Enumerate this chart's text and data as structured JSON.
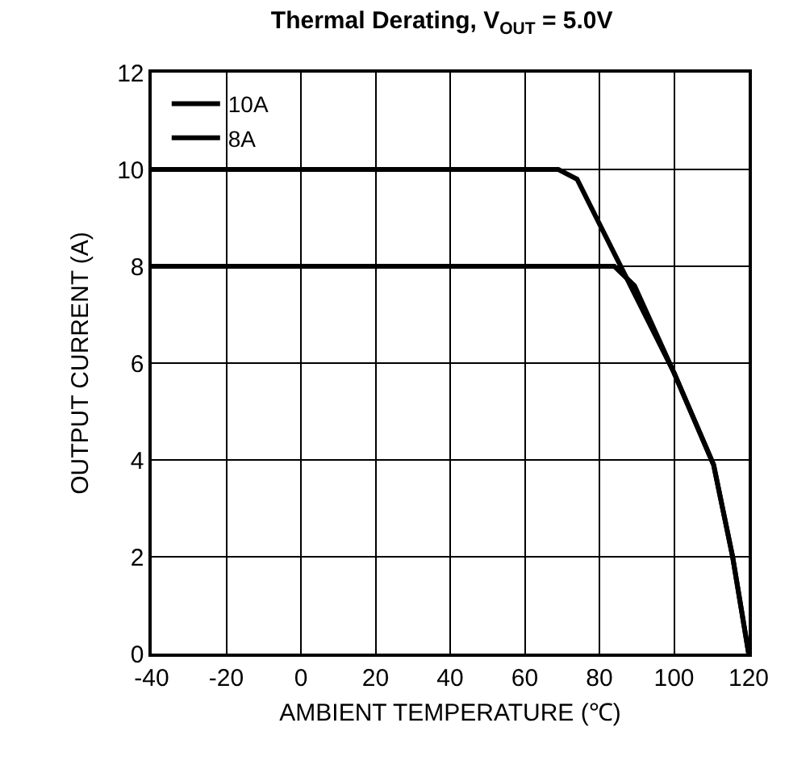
{
  "chart_data": {
    "type": "line",
    "title": "Thermal Derating, V$_{OUT}$ = 5.0V",
    "xlabel": "AMBIENT TEMPERATURE (℃)",
    "ylabel": "OUTPUT CURRENT (A)",
    "series": [
      {
        "name": "10A",
        "color": "#000000",
        "x": [
          -40,
          69,
          74,
          100,
          110.6,
          115.7,
          120
        ],
        "values": [
          10,
          10,
          9.8,
          5.8,
          3.9,
          2,
          0
        ]
      },
      {
        "name": "8A",
        "color": "#000000",
        "x": [
          -40,
          84,
          89.4,
          100,
          110.6,
          115.7,
          120
        ],
        "values": [
          8,
          8,
          7.6,
          5.8,
          3.9,
          2,
          0
        ]
      }
    ],
    "xlim": [
      -40,
      120
    ],
    "xticks": [
      -40,
      -20,
      0,
      20,
      40,
      60,
      80,
      100,
      120
    ],
    "ylim": [
      0,
      12
    ],
    "yticks": [
      0,
      2,
      4,
      6,
      8,
      10,
      12
    ],
    "grid": true,
    "legend": "top left",
    "line_style": "solid",
    "marker": "none"
  }
}
